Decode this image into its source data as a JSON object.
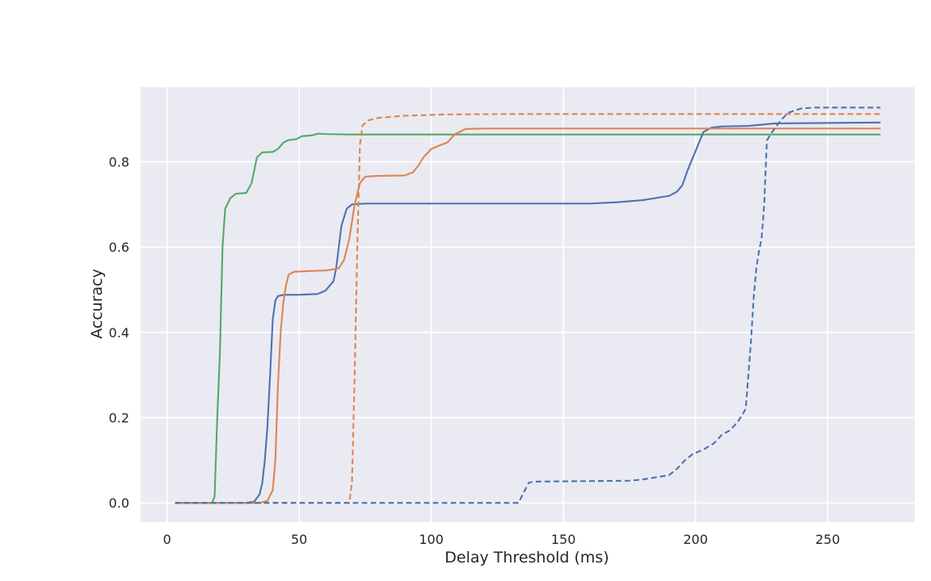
{
  "chart_data": {
    "type": "line",
    "title": "",
    "xlabel": "Delay Threshold (ms)",
    "ylabel": "Accuracy",
    "xlim": [
      -10,
      283
    ],
    "ylim": [
      -0.045,
      0.975
    ],
    "xticks": [
      0,
      50,
      100,
      150,
      200,
      250
    ],
    "yticks": [
      0.0,
      0.2,
      0.4,
      0.6,
      0.8
    ],
    "xtick_labels": [
      "0",
      "50",
      "100",
      "150",
      "200",
      "250"
    ],
    "ytick_labels": [
      "0.0",
      "0.2",
      "0.4",
      "0.6",
      "0.8"
    ],
    "grid": true,
    "legend": "none",
    "colors": {
      "plot_bg": "#eaeaf2",
      "grid": "#ffffff",
      "text": "#262626"
    },
    "series": [
      {
        "color": "#55a868",
        "style": "solid",
        "points": [
          [
            3,
            0.0
          ],
          [
            17,
            0.0
          ],
          [
            18,
            0.015
          ],
          [
            19,
            0.2
          ],
          [
            20,
            0.35
          ],
          [
            21,
            0.6
          ],
          [
            22,
            0.69
          ],
          [
            24,
            0.715
          ],
          [
            26,
            0.725
          ],
          [
            30,
            0.727
          ],
          [
            32,
            0.75
          ],
          [
            34,
            0.81
          ],
          [
            36,
            0.822
          ],
          [
            40,
            0.823
          ],
          [
            42,
            0.83
          ],
          [
            44,
            0.845
          ],
          [
            46,
            0.851
          ],
          [
            49,
            0.853
          ],
          [
            51,
            0.86
          ],
          [
            55,
            0.862
          ],
          [
            57,
            0.866
          ],
          [
            60,
            0.865
          ],
          [
            70,
            0.864
          ],
          [
            270,
            0.864
          ]
        ]
      },
      {
        "color": "#4c72b0",
        "style": "solid",
        "points": [
          [
            3,
            0.0
          ],
          [
            30,
            0.0
          ],
          [
            33,
            0.003
          ],
          [
            35,
            0.02
          ],
          [
            36,
            0.045
          ],
          [
            37,
            0.1
          ],
          [
            38,
            0.18
          ],
          [
            39,
            0.3
          ],
          [
            40,
            0.43
          ],
          [
            41,
            0.475
          ],
          [
            42,
            0.485
          ],
          [
            44,
            0.488
          ],
          [
            50,
            0.488
          ],
          [
            57,
            0.49
          ],
          [
            60,
            0.498
          ],
          [
            63,
            0.52
          ],
          [
            64,
            0.55
          ],
          [
            65,
            0.6
          ],
          [
            66,
            0.65
          ],
          [
            68,
            0.69
          ],
          [
            70,
            0.7
          ],
          [
            75,
            0.702
          ],
          [
            100,
            0.702
          ],
          [
            160,
            0.702
          ],
          [
            170,
            0.705
          ],
          [
            180,
            0.71
          ],
          [
            185,
            0.715
          ],
          [
            190,
            0.72
          ],
          [
            193,
            0.73
          ],
          [
            195,
            0.745
          ],
          [
            197,
            0.78
          ],
          [
            199,
            0.81
          ],
          [
            201,
            0.84
          ],
          [
            203,
            0.87
          ],
          [
            206,
            0.88
          ],
          [
            210,
            0.883
          ],
          [
            220,
            0.884
          ],
          [
            230,
            0.89
          ],
          [
            270,
            0.892
          ]
        ]
      },
      {
        "color": "#dd8452",
        "style": "solid",
        "points": [
          [
            3,
            0.0
          ],
          [
            35,
            0.0
          ],
          [
            38,
            0.005
          ],
          [
            40,
            0.03
          ],
          [
            41,
            0.1
          ],
          [
            42,
            0.28
          ],
          [
            43,
            0.4
          ],
          [
            44,
            0.47
          ],
          [
            45,
            0.51
          ],
          [
            46,
            0.535
          ],
          [
            48,
            0.542
          ],
          [
            55,
            0.544
          ],
          [
            60,
            0.545
          ],
          [
            65,
            0.55
          ],
          [
            67,
            0.57
          ],
          [
            69,
            0.62
          ],
          [
            71,
            0.7
          ],
          [
            73,
            0.75
          ],
          [
            75,
            0.765
          ],
          [
            80,
            0.767
          ],
          [
            90,
            0.768
          ],
          [
            93,
            0.775
          ],
          [
            95,
            0.79
          ],
          [
            97,
            0.81
          ],
          [
            100,
            0.83
          ],
          [
            103,
            0.838
          ],
          [
            106,
            0.845
          ],
          [
            109,
            0.865
          ],
          [
            113,
            0.877
          ],
          [
            120,
            0.878
          ],
          [
            270,
            0.878
          ]
        ]
      },
      {
        "color": "#dd8452",
        "style": "dashed",
        "points": [
          [
            3,
            0.0
          ],
          [
            69,
            0.0
          ],
          [
            70,
            0.05
          ],
          [
            71,
            0.3
          ],
          [
            72,
            0.6
          ],
          [
            73,
            0.84
          ],
          [
            74,
            0.885
          ],
          [
            76,
            0.897
          ],
          [
            80,
            0.903
          ],
          [
            90,
            0.908
          ],
          [
            105,
            0.911
          ],
          [
            130,
            0.912
          ],
          [
            270,
            0.912
          ]
        ]
      },
      {
        "color": "#4c72b0",
        "style": "dashed",
        "points": [
          [
            3,
            0.0
          ],
          [
            133,
            0.0
          ],
          [
            135,
            0.025
          ],
          [
            137,
            0.048
          ],
          [
            140,
            0.05
          ],
          [
            175,
            0.052
          ],
          [
            180,
            0.055
          ],
          [
            185,
            0.06
          ],
          [
            190,
            0.065
          ],
          [
            193,
            0.08
          ],
          [
            196,
            0.1
          ],
          [
            199,
            0.115
          ],
          [
            203,
            0.125
          ],
          [
            207,
            0.14
          ],
          [
            210,
            0.16
          ],
          [
            213,
            0.17
          ],
          [
            216,
            0.19
          ],
          [
            219,
            0.22
          ],
          [
            220,
            0.3
          ],
          [
            221,
            0.38
          ],
          [
            222,
            0.48
          ],
          [
            223,
            0.55
          ],
          [
            224,
            0.59
          ],
          [
            225,
            0.62
          ],
          [
            226,
            0.7
          ],
          [
            227,
            0.85
          ],
          [
            229,
            0.87
          ],
          [
            232,
            0.895
          ],
          [
            235,
            0.915
          ],
          [
            240,
            0.925
          ],
          [
            245,
            0.927
          ],
          [
            270,
            0.927
          ]
        ]
      }
    ]
  }
}
